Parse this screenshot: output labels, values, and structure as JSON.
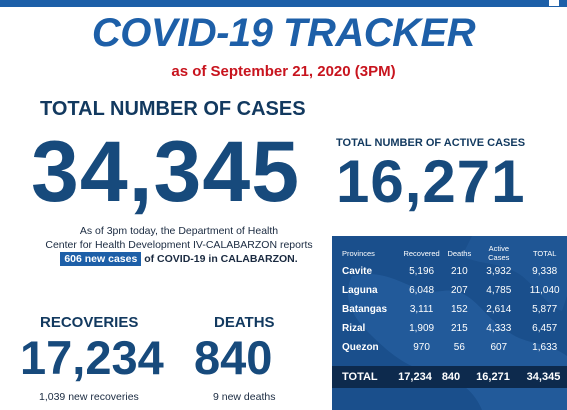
{
  "header": {
    "title": "COVID-19 TRACKER",
    "as_of": "as of September 21, 2020  (3PM)"
  },
  "total_cases": {
    "label": "TOTAL NUMBER OF CASES",
    "value": "34,345"
  },
  "active_cases": {
    "label": "TOTAL NUMBER OF ACTIVE CASES",
    "value": "16,271"
  },
  "report": {
    "line1": "As of 3pm today, the Department of Health",
    "line2": "Center for Health Development IV-CALABARZON reports",
    "new_cases": "606 new cases",
    "line3_rest": " of COVID-19 in CALABARZON."
  },
  "recoveries": {
    "label": "RECOVERIES",
    "value": "17,234",
    "sub": "1,039 new recoveries"
  },
  "deaths": {
    "label": "DEATHS",
    "value": "840",
    "sub": "9 new deaths"
  },
  "table": {
    "headers": [
      "Provinces",
      "Recovered",
      "Deaths",
      "Active Cases",
      "TOTAL"
    ],
    "rows": [
      [
        "Cavite",
        "5,196",
        "210",
        "3,932",
        "9,338"
      ],
      [
        "Laguna",
        "6,048",
        "207",
        "4,785",
        "11,040"
      ],
      [
        "Batangas",
        "3,111",
        "152",
        "2,614",
        "5,877"
      ],
      [
        "Rizal",
        "1,909",
        "215",
        "4,333",
        "6,457"
      ],
      [
        "Quezon",
        "970",
        "56",
        "607",
        "1,633"
      ]
    ],
    "total": [
      "TOTAL",
      "17,234",
      "840",
      "16,271",
      "34,345"
    ]
  },
  "colors": {
    "title_blue": "#1d5fa8",
    "date_red": "#c8141e",
    "number_navy": "#174a7c",
    "table_bg": "#1a4f8c",
    "total_row_bg": "#0d2a4d"
  }
}
